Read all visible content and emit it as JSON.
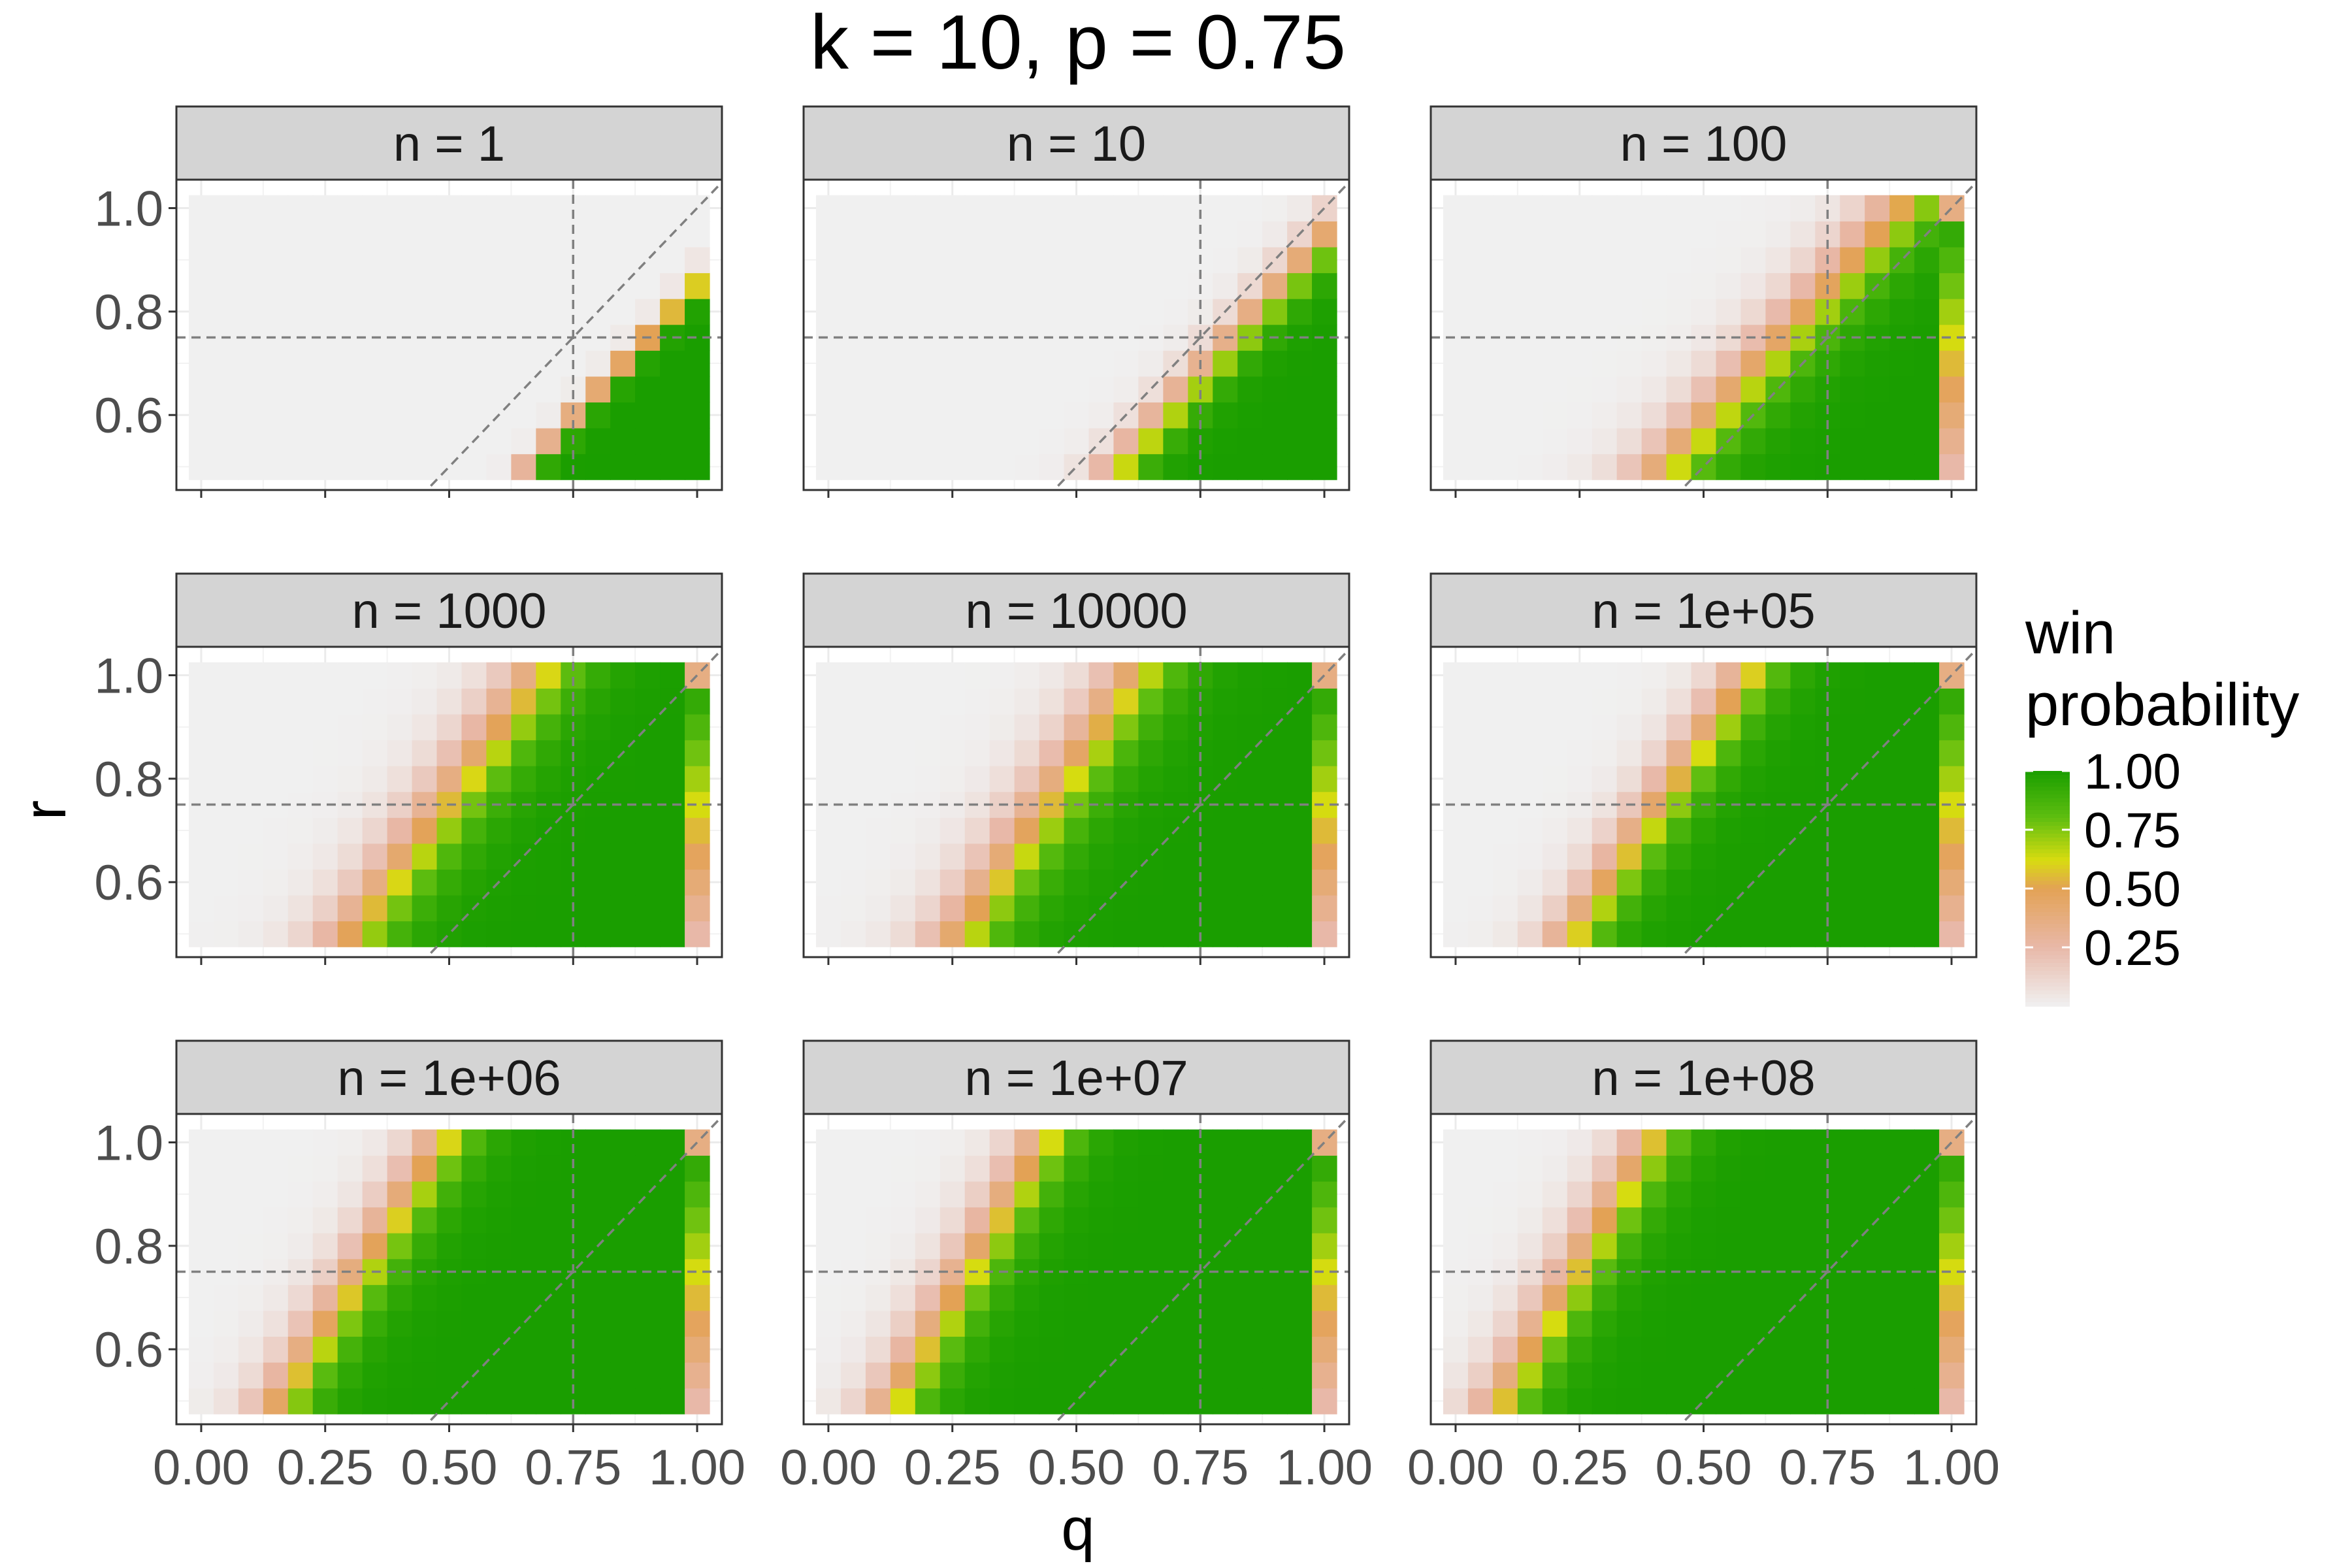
{
  "chart_data": {
    "type": "heatmap",
    "title": "k = 10, p = 0.75",
    "xlabel": "q",
    "ylabel": "r",
    "x_ticks": [
      0.0,
      0.25,
      0.5,
      0.75,
      1.0
    ],
    "x_tick_labels": [
      "0.00",
      "0.25",
      "0.50",
      "0.75",
      "1.00"
    ],
    "y_ticks": [
      0.6,
      0.8,
      1.0
    ],
    "y_tick_labels": [
      "0.6",
      "0.8",
      "1.0"
    ],
    "xlim": [
      -0.05,
      1.05
    ],
    "ylim": [
      0.455,
      1.055
    ],
    "grid": "on",
    "q_values": [
      0.0,
      0.05,
      0.1,
      0.15,
      0.2,
      0.25,
      0.3,
      0.35,
      0.4,
      0.45,
      0.5,
      0.55,
      0.6,
      0.65,
      0.7,
      0.75,
      0.8,
      0.85,
      0.9,
      0.95,
      1.0
    ],
    "r_values": [
      0.5,
      0.55,
      0.6,
      0.65,
      0.7,
      0.75,
      0.8,
      0.85,
      0.9,
      0.95,
      1.0
    ],
    "reference_lines": {
      "vertical_q": 0.75,
      "horizontal_r": 0.75,
      "diagonal": "q = r"
    },
    "legend": {
      "title": [
        "win",
        "probability"
      ],
      "placement": "right",
      "breaks": [
        "1.00",
        "0.75",
        "0.50",
        "0.25"
      ],
      "break_values": [
        1.0,
        0.75,
        0.5,
        0.25
      ],
      "colors": [
        {
          "value": 0.0,
          "color": "#f0f0f0"
        },
        {
          "value": 0.25,
          "color": "#e8b8a8"
        },
        {
          "value": 0.5,
          "color": "#e3a255"
        },
        {
          "value": 0.62,
          "color": "#d8dc10"
        },
        {
          "value": 0.8,
          "color": "#5fbe10"
        },
        {
          "value": 1.0,
          "color": "#1a9e00"
        }
      ]
    },
    "panels": [
      {
        "label": "n = 1",
        "s": 0.95,
        "a": 0.9,
        "b": 0.014,
        "top_exact": true
      },
      {
        "label": "n = 10",
        "s": 0.95,
        "a": 0.82,
        "b": 0.03,
        "top_exact": true
      },
      {
        "label": "n = 100",
        "s": 0.95,
        "a": 0.66,
        "b": 0.05,
        "top_exact": false
      },
      {
        "label": "n = 1000",
        "s": 0.75,
        "a": 0.49,
        "b": 0.05,
        "top_exact": false
      },
      {
        "label": "n = 10000",
        "s": 0.7,
        "a": 0.44,
        "b": 0.05,
        "top_exact": false
      },
      {
        "label": "n = 1e+05",
        "s": 0.7,
        "a": 0.41,
        "b": 0.04,
        "top_exact": false
      },
      {
        "label": "n = 1e+06",
        "s": 0.65,
        "a": 0.32,
        "b": 0.04,
        "top_exact": false
      },
      {
        "label": "n = 1e+07",
        "s": 0.6,
        "a": 0.28,
        "b": 0.04,
        "top_exact": false
      },
      {
        "label": "n = 1e+08",
        "s": 0.6,
        "a": 0.24,
        "b": 0.04,
        "top_exact": false
      }
    ]
  }
}
